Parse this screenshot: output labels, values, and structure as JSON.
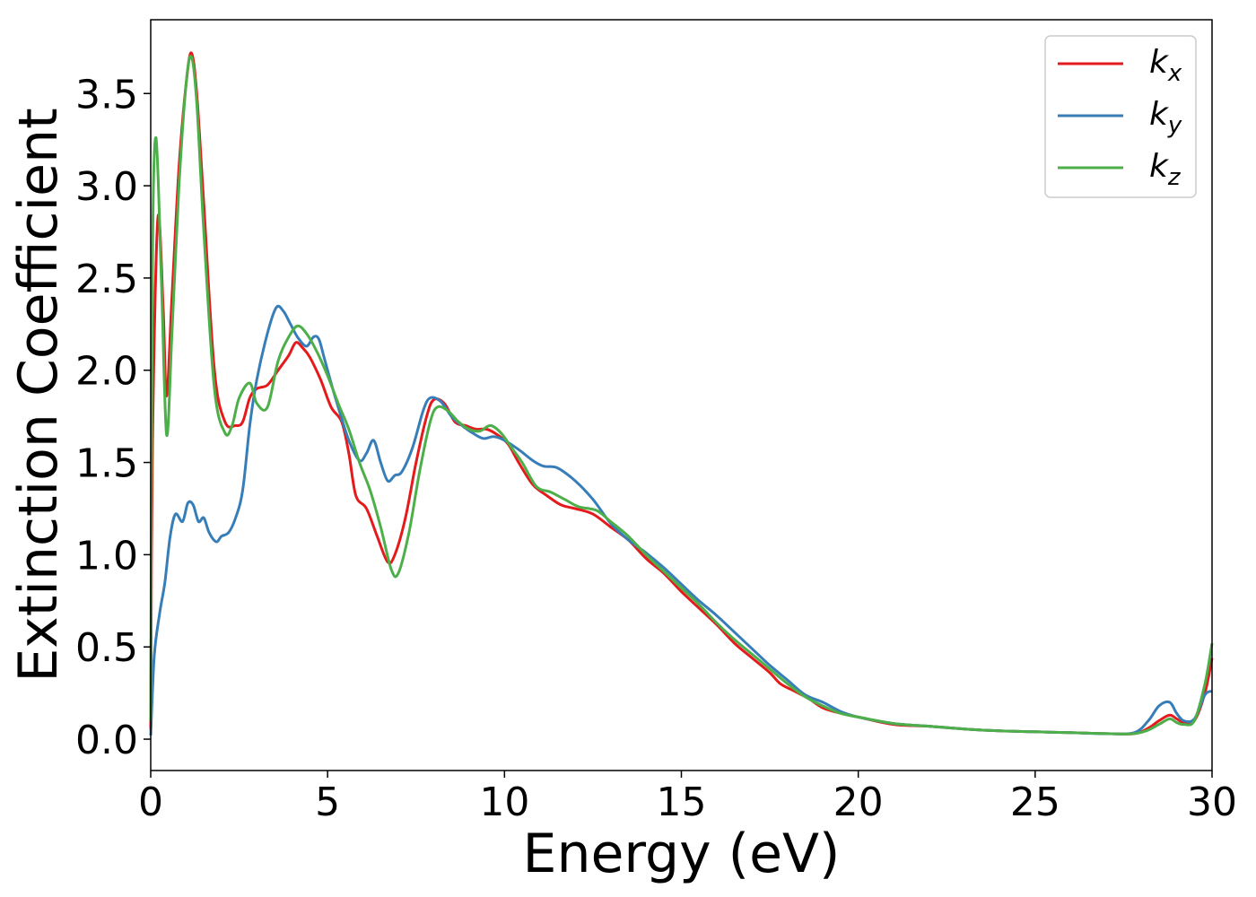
{
  "chart_data": {
    "type": "line",
    "title": "",
    "xlabel": "Energy (eV)",
    "ylabel": "Extinction Coefficient",
    "xlim": [
      0,
      30
    ],
    "ylim": [
      -0.17,
      3.9
    ],
    "xticks": [
      0,
      5,
      10,
      15,
      20,
      25,
      30
    ],
    "xtick_labels": [
      "0",
      "5",
      "10",
      "15",
      "20",
      "25",
      "30"
    ],
    "yticks": [
      0.0,
      0.5,
      1.0,
      1.5,
      2.0,
      2.5,
      3.0,
      3.5
    ],
    "ytick_labels": [
      "0.0",
      "0.5",
      "1.0",
      "1.5",
      "2.0",
      "2.5",
      "3.0",
      "3.5"
    ],
    "grid": false,
    "legend_position": "top-right",
    "series": [
      {
        "name": "k",
        "subscript": "x",
        "color": "#e41a1c",
        "x": [
          0,
          0.05,
          0.2,
          0.35,
          0.45,
          0.6,
          0.8,
          1.0,
          1.15,
          1.3,
          1.5,
          1.8,
          2.1,
          2.4,
          2.6,
          2.8,
          3.0,
          3.3,
          3.6,
          3.9,
          4.1,
          4.3,
          4.5,
          4.8,
          5.1,
          5.4,
          5.6,
          5.8,
          6.1,
          6.4,
          6.7,
          6.9,
          7.2,
          7.5,
          7.8,
          8.0,
          8.3,
          8.6,
          8.9,
          9.2,
          9.5,
          9.8,
          10.1,
          10.4,
          10.8,
          11.2,
          11.6,
          12.0,
          12.5,
          13.0,
          13.5,
          14.0,
          14.5,
          15.0,
          15.5,
          16.0,
          16.5,
          17.0,
          17.5,
          17.8,
          18.2,
          18.6,
          19.0,
          19.5,
          20.0,
          21.0,
          22.0,
          23.0,
          24.0,
          25.0,
          26.0,
          27.0,
          27.8,
          28.2,
          28.5,
          28.8,
          29.0,
          29.2,
          29.5,
          29.8,
          30.0
        ],
        "values": [
          0.05,
          1.6,
          2.82,
          2.35,
          1.86,
          2.4,
          3.1,
          3.55,
          3.72,
          3.5,
          2.9,
          2.0,
          1.72,
          1.7,
          1.72,
          1.85,
          1.9,
          1.92,
          2.0,
          2.08,
          2.15,
          2.12,
          2.07,
          1.95,
          1.8,
          1.72,
          1.55,
          1.32,
          1.25,
          1.1,
          0.96,
          1.0,
          1.2,
          1.5,
          1.75,
          1.84,
          1.82,
          1.72,
          1.7,
          1.68,
          1.68,
          1.65,
          1.6,
          1.5,
          1.38,
          1.32,
          1.27,
          1.25,
          1.22,
          1.15,
          1.08,
          0.98,
          0.9,
          0.8,
          0.71,
          0.62,
          0.52,
          0.44,
          0.36,
          0.3,
          0.26,
          0.22,
          0.17,
          0.14,
          0.12,
          0.08,
          0.07,
          0.055,
          0.045,
          0.04,
          0.035,
          0.03,
          0.03,
          0.06,
          0.1,
          0.13,
          0.11,
          0.09,
          0.1,
          0.25,
          0.44
        ]
      },
      {
        "name": "k",
        "subscript": "y",
        "color": "#377eb8",
        "x": [
          0,
          0.1,
          0.25,
          0.4,
          0.55,
          0.7,
          0.9,
          1.05,
          1.2,
          1.35,
          1.5,
          1.65,
          1.85,
          2.0,
          2.2,
          2.4,
          2.6,
          2.8,
          3.0,
          3.3,
          3.55,
          3.75,
          3.95,
          4.15,
          4.4,
          4.6,
          4.75,
          4.9,
          5.1,
          5.3,
          5.6,
          5.9,
          6.1,
          6.3,
          6.5,
          6.7,
          6.9,
          7.1,
          7.4,
          7.7,
          7.9,
          8.2,
          8.5,
          8.8,
          9.1,
          9.4,
          9.7,
          10.0,
          10.4,
          10.8,
          11.1,
          11.5,
          12.0,
          12.5,
          13.0,
          13.5,
          14.0,
          14.5,
          15.0,
          15.5,
          16.0,
          16.5,
          17.0,
          17.5,
          18.0,
          18.5,
          19.0,
          19.5,
          20.0,
          21.0,
          22.0,
          23.0,
          24.0,
          25.0,
          26.0,
          27.0,
          27.8,
          28.2,
          28.5,
          28.8,
          29.0,
          29.2,
          29.5,
          29.8,
          30.0
        ],
        "values": [
          0.02,
          0.45,
          0.68,
          0.85,
          1.1,
          1.22,
          1.18,
          1.28,
          1.27,
          1.18,
          1.2,
          1.12,
          1.07,
          1.1,
          1.12,
          1.2,
          1.35,
          1.7,
          1.95,
          2.2,
          2.34,
          2.32,
          2.25,
          2.18,
          2.13,
          2.18,
          2.17,
          2.07,
          1.93,
          1.8,
          1.62,
          1.51,
          1.55,
          1.62,
          1.5,
          1.4,
          1.43,
          1.45,
          1.58,
          1.78,
          1.85,
          1.83,
          1.75,
          1.7,
          1.66,
          1.63,
          1.64,
          1.62,
          1.57,
          1.51,
          1.48,
          1.47,
          1.4,
          1.3,
          1.17,
          1.08,
          1.01,
          0.93,
          0.84,
          0.75,
          0.67,
          0.58,
          0.49,
          0.4,
          0.32,
          0.24,
          0.2,
          0.15,
          0.12,
          0.085,
          0.07,
          0.055,
          0.045,
          0.04,
          0.035,
          0.03,
          0.035,
          0.1,
          0.18,
          0.2,
          0.14,
          0.1,
          0.11,
          0.24,
          0.26
        ]
      },
      {
        "name": "k",
        "subscript": "z",
        "color": "#4daf4a",
        "x": [
          0,
          0.05,
          0.15,
          0.3,
          0.45,
          0.6,
          0.8,
          1.0,
          1.15,
          1.3,
          1.5,
          1.8,
          2.1,
          2.3,
          2.5,
          2.8,
          3.0,
          3.3,
          3.6,
          3.9,
          4.15,
          4.4,
          4.7,
          5.0,
          5.3,
          5.6,
          5.9,
          6.2,
          6.5,
          6.8,
          7.0,
          7.3,
          7.6,
          7.9,
          8.1,
          8.4,
          8.7,
          9.0,
          9.3,
          9.6,
          9.9,
          10.2,
          10.5,
          10.9,
          11.3,
          11.7,
          12.1,
          12.6,
          13.0,
          13.5,
          14.0,
          14.5,
          15.0,
          15.5,
          16.0,
          16.5,
          17.0,
          17.5,
          18.0,
          18.5,
          19.0,
          19.5,
          20.0,
          21.0,
          22.0,
          23.0,
          24.0,
          25.0,
          26.0,
          27.0,
          27.8,
          28.2,
          28.5,
          28.8,
          29.0,
          29.2,
          29.5,
          29.8,
          30.0
        ],
        "values": [
          0.1,
          2.6,
          3.26,
          2.5,
          1.65,
          2.2,
          3.0,
          3.55,
          3.7,
          3.45,
          2.75,
          1.9,
          1.66,
          1.7,
          1.85,
          1.93,
          1.82,
          1.8,
          2.05,
          2.18,
          2.24,
          2.2,
          2.1,
          1.97,
          1.82,
          1.68,
          1.5,
          1.35,
          1.15,
          0.92,
          0.9,
          1.12,
          1.45,
          1.72,
          1.8,
          1.78,
          1.72,
          1.68,
          1.67,
          1.7,
          1.66,
          1.58,
          1.5,
          1.37,
          1.34,
          1.3,
          1.26,
          1.24,
          1.18,
          1.1,
          1.0,
          0.91,
          0.82,
          0.73,
          0.63,
          0.54,
          0.46,
          0.38,
          0.3,
          0.23,
          0.18,
          0.14,
          0.12,
          0.085,
          0.07,
          0.055,
          0.045,
          0.04,
          0.035,
          0.03,
          0.03,
          0.05,
          0.08,
          0.11,
          0.09,
          0.08,
          0.1,
          0.3,
          0.52
        ]
      }
    ]
  }
}
